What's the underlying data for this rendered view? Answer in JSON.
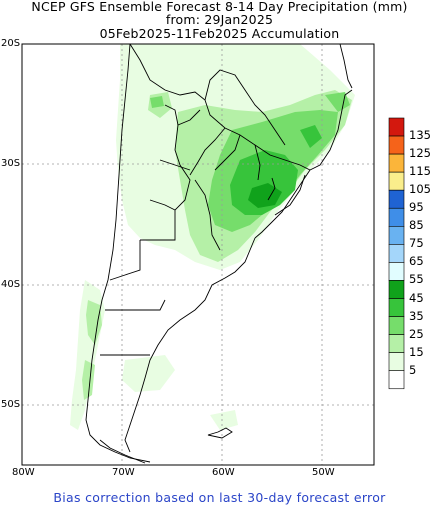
{
  "header": {
    "title_line1": "NCEP GFS Ensemble Forecast 8-14 Day Precipitation (mm)",
    "title_line2": "from: 29Jan2025",
    "title_line3": "05Feb2025-11Feb2025 Accumulation"
  },
  "axes": {
    "lat_labels": [
      "20S",
      "30S",
      "40S",
      "50S"
    ],
    "lon_labels": [
      "80W",
      "70W",
      "60W",
      "50W"
    ]
  },
  "colorbar": {
    "levels": [
      {
        "label": "135",
        "color": "#d3180e"
      },
      {
        "label": "125",
        "color": "#f5631a"
      },
      {
        "label": "115",
        "color": "#fbb53a"
      },
      {
        "label": "105",
        "color": "#faee8c"
      },
      {
        "label": "95",
        "color": "#1f63d3"
      },
      {
        "label": "85",
        "color": "#3f8ee8"
      },
      {
        "label": "75",
        "color": "#69b2f1"
      },
      {
        "label": "65",
        "color": "#a4d6fa"
      },
      {
        "label": "55",
        "color": "#e1fdff"
      },
      {
        "label": "45",
        "color": "#10a21b"
      },
      {
        "label": "35",
        "color": "#37c43b"
      },
      {
        "label": "25",
        "color": "#76dd6b"
      },
      {
        "label": "15",
        "color": "#b5f0a7"
      },
      {
        "label": "5",
        "color": "#e8fde2"
      },
      {
        "label": "",
        "color": "#ffffff"
      }
    ]
  },
  "footer": {
    "note": "Bias correction based on last 30-day forecast error"
  }
}
